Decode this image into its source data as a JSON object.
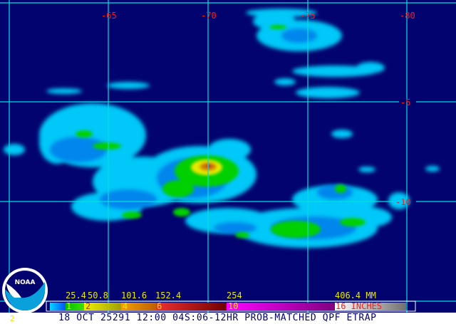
{
  "map": {
    "background_color": "#02036e",
    "grid_color": "#00e0e0",
    "label_color": "#ff1a1a",
    "longitude_labels": [
      "-65",
      "-70",
      "-75",
      "-80"
    ],
    "latitude_labels": [
      "-5",
      "-10"
    ]
  },
  "logo": {
    "text": "NOAA"
  },
  "legend": {
    "mm_labels": [
      "25.4",
      "50.8",
      "101.6",
      "152.4",
      "254",
      "406.4 MM"
    ],
    "inch_labels": [
      "1",
      "2",
      "4",
      "6",
      "10",
      "16 INCHES"
    ],
    "colors": {
      "light": "#00d8ff",
      "blue": "#0080ff",
      "green": "#00d000",
      "yellow": "#e8e800",
      "orange": "#f09000",
      "red": "#e02020",
      "darkred": "#700000",
      "magenta": "#ff00ff",
      "gray": "#ffffff"
    }
  },
  "footer": {
    "frame_number": "2",
    "caption": "18 OCT 25291 12:00 04S:06-12HR PROB-MATCHED QPF ETRAP"
  }
}
